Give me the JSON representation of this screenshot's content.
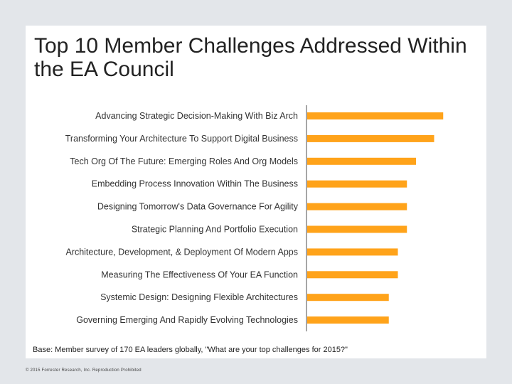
{
  "slide": {
    "title": "Top 10 Member Challenges Addressed Within the EA Council",
    "footnote": "Base: Member survey of 170 EA leaders globally, \"What are your top challenges for 2015?\"",
    "copyright": "© 2015 Forrester Research, Inc. Reproduction Prohibited"
  },
  "colors": {
    "bar": "#ffa31a",
    "axis": "#888888",
    "background": "#e3e6ea",
    "panel": "#ffffff"
  },
  "chart_data": {
    "type": "bar",
    "orientation": "horizontal",
    "categories": [
      "Advancing Strategic Decision-Making With Biz Arch",
      "Transforming Your Architecture To Support Digital Business",
      "Tech Org Of The Future: Emerging Roles And Org Models",
      "Embedding Process Innovation Within The Business",
      "Designing Tomorrow's Data Governance For Agility",
      "Strategic Planning And Portfolio Execution",
      "Architecture, Development, & Deployment Of Modern Apps",
      "Measuring The Effectiveness Of Your EA Function",
      "Systemic Design: Designing Flexible Architectures",
      "Governing Emerging And Rapidly Evolving Technologies"
    ],
    "values": [
      15,
      14,
      12,
      11,
      11,
      11,
      10,
      10,
      9,
      9
    ],
    "xlim": [
      0,
      16
    ],
    "grid": false,
    "legend": "none",
    "title": "",
    "xlabel": "",
    "ylabel": ""
  }
}
